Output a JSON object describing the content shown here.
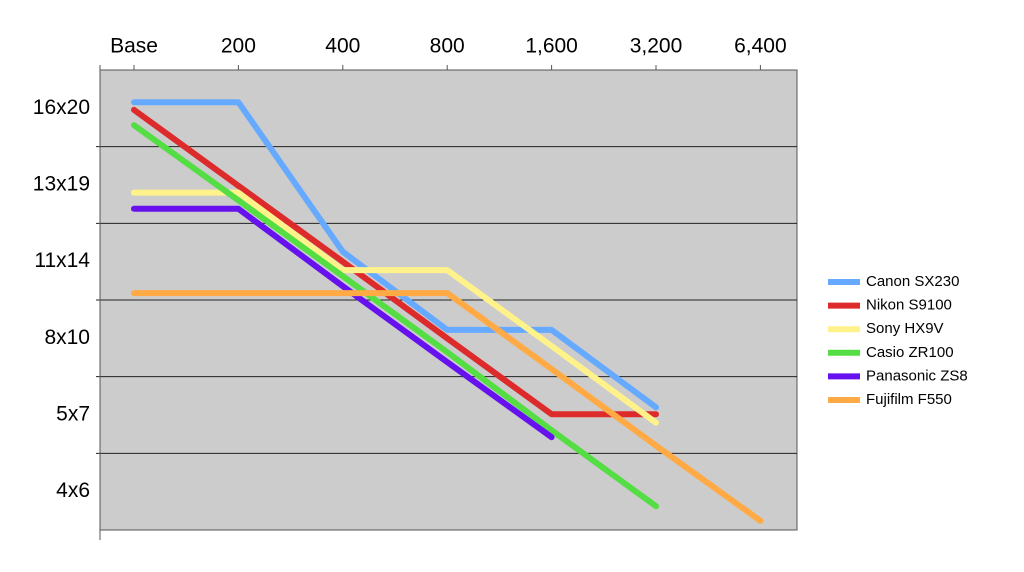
{
  "chart_data": {
    "type": "line",
    "categories": [
      "Base",
      "200",
      "400",
      "800",
      "1,600",
      "3,200",
      "6,400"
    ],
    "ylim": [
      0,
      6
    ],
    "yticks": [
      {
        "value": 5.5,
        "label": "16x20"
      },
      {
        "value": 4.5,
        "label": "13x19"
      },
      {
        "value": 3.5,
        "label": "11x14"
      },
      {
        "value": 2.5,
        "label": "8x10"
      },
      {
        "value": 1.5,
        "label": "5x7"
      },
      {
        "value": 0.5,
        "label": "4x6"
      }
    ],
    "ygrid": [
      1,
      2,
      3,
      4,
      5
    ],
    "grid": true,
    "legend": "right",
    "series": [
      {
        "name": "Canon SX230",
        "color": "#66aaff",
        "values": [
          5.58,
          5.58,
          3.63,
          2.61,
          2.61,
          1.6,
          null
        ]
      },
      {
        "name": "Nikon S9100",
        "color": "#dd2a2a",
        "values": [
          5.48,
          4.49,
          3.5,
          2.5,
          1.51,
          1.51,
          null
        ]
      },
      {
        "name": "Sony HX9V",
        "color": "#fff28a",
        "values": [
          4.4,
          4.4,
          3.39,
          3.39,
          2.4,
          1.4,
          null
        ]
      },
      {
        "name": "Casio ZR100",
        "color": "#55dd44",
        "values": [
          5.28,
          4.3,
          3.31,
          2.32,
          1.3,
          0.31,
          null
        ]
      },
      {
        "name": "Panasonic ZS8",
        "color": "#6611ee",
        "values": [
          4.19,
          4.19,
          3.18,
          2.19,
          1.21,
          null,
          null
        ]
      },
      {
        "name": "Fujifilm F550",
        "color": "#ffaa44",
        "values": [
          3.09,
          3.09,
          3.09,
          3.09,
          2.1,
          1.1,
          0.12
        ]
      }
    ]
  }
}
